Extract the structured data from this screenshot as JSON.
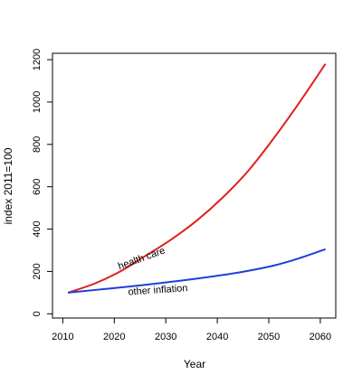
{
  "chart_data": {
    "type": "line",
    "xlabel": "Year",
    "ylabel": "index 2011=100",
    "xlim": [
      2008,
      2063
    ],
    "ylim": [
      -20,
      1230
    ],
    "x_ticks": [
      2010,
      2020,
      2030,
      2040,
      2050,
      2060
    ],
    "y_ticks": [
      0,
      200,
      400,
      600,
      800,
      1000,
      1200
    ],
    "grid": false,
    "legend": "none",
    "series": [
      {
        "name": "health care",
        "color": "#e0201b",
        "x": [
          2011,
          2016,
          2021,
          2026,
          2031,
          2036,
          2041,
          2046,
          2051,
          2056,
          2061
        ],
        "y": [
          100,
          141,
          198,
          273,
          350,
          440,
          548,
          675,
          830,
          1000,
          1180
        ]
      },
      {
        "name": "other inflation",
        "color": "#1f3fd6",
        "x": [
          2011,
          2016,
          2021,
          2026,
          2031,
          2036,
          2041,
          2046,
          2051,
          2056,
          2061
        ],
        "y": [
          100,
          112,
          124,
          137,
          151,
          166,
          183,
          203,
          228,
          263,
          305
        ]
      }
    ],
    "annotations": [
      {
        "text": "health care",
        "x": 2025.5,
        "y": 248,
        "rotation": -20
      },
      {
        "text": "other inflation",
        "x": 2028.5,
        "y": 98,
        "rotation": -4
      }
    ]
  }
}
